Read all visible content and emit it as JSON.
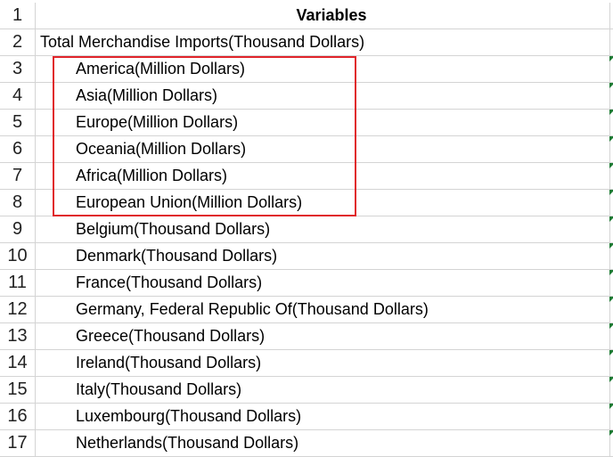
{
  "sheet": {
    "header": {
      "row": "1",
      "value": "Variables"
    },
    "rows": [
      {
        "row": "2",
        "value": "Total Merchandise Imports(Thousand Dollars)",
        "level": 0
      },
      {
        "row": "3",
        "value": "America(Million Dollars)",
        "level": 1
      },
      {
        "row": "4",
        "value": "Asia(Million Dollars)",
        "level": 1
      },
      {
        "row": "5",
        "value": "Europe(Million Dollars)",
        "level": 1
      },
      {
        "row": "6",
        "value": "Oceania(Million Dollars)",
        "level": 1
      },
      {
        "row": "7",
        "value": "Africa(Million Dollars)",
        "level": 1
      },
      {
        "row": "8",
        "value": "European Union(Million Dollars)",
        "level": 1
      },
      {
        "row": "9",
        "value": "Belgium(Thousand Dollars)",
        "level": 1
      },
      {
        "row": "10",
        "value": "Denmark(Thousand Dollars)",
        "level": 1
      },
      {
        "row": "11",
        "value": "France(Thousand Dollars)",
        "level": 1
      },
      {
        "row": "12",
        "value": "Germany, Federal Republic Of(Thousand Dollars)",
        "level": 1
      },
      {
        "row": "13",
        "value": "Greece(Thousand Dollars)",
        "level": 1
      },
      {
        "row": "14",
        "value": "Ireland(Thousand Dollars)",
        "level": 1
      },
      {
        "row": "15",
        "value": "Italy(Thousand Dollars)",
        "level": 1
      },
      {
        "row": "16",
        "value": "Luxembourg(Thousand Dollars)",
        "level": 1
      },
      {
        "row": "17",
        "value": "Netherlands(Thousand Dollars)",
        "level": 1
      }
    ]
  },
  "colors": {
    "highlight_border": "#e0242a",
    "error_indicator": "#1e7b34",
    "gridline": "#d4d4d4"
  }
}
